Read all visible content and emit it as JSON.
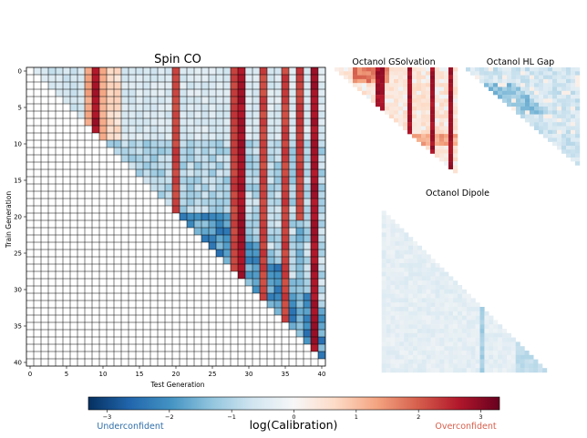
{
  "chart_data": [
    {
      "type": "heatmap",
      "title": "Spin CO",
      "xlabel": "Test Generation",
      "ylabel": "Train Generation",
      "x_ticks": [
        0,
        5,
        10,
        15,
        20,
        25,
        30,
        35,
        40
      ],
      "y_ticks": [
        0,
        5,
        10,
        15,
        20,
        25,
        30,
        35,
        40
      ],
      "n": 41,
      "grid": true,
      "shape": "upper-triangle",
      "strong_positive_test_generations": [
        8,
        9,
        10,
        20,
        28,
        29,
        32,
        35,
        37,
        39
      ],
      "value_range": [
        -3.2,
        3.2
      ]
    },
    {
      "type": "heatmap",
      "title": "Octanol GSolvation",
      "grid": false,
      "shape": "upper-triangle",
      "strong_positive_columns": [
        10,
        11,
        17,
        22,
        26
      ]
    },
    {
      "type": "heatmap",
      "title": "Octanol HL Gap",
      "grid": false,
      "shape": "upper-triangle",
      "sign": "mostly negative"
    },
    {
      "type": "heatmap",
      "title": "Octanol Dipole",
      "grid": false,
      "shape": "lower-triangle",
      "sign": "mostly weakly negative"
    }
  ],
  "colorbar": {
    "label": "log(Calibration)",
    "ticks": [
      "−3",
      "−2",
      "−1",
      "0",
      "1",
      "2",
      "3"
    ],
    "tick_values": [
      -3,
      -2,
      -1,
      0,
      1,
      2,
      3
    ],
    "range": [
      -3.3,
      3.3
    ],
    "left_caption": "Underconfident",
    "right_caption": "Overconfident",
    "left_caption_color": "#2f6ea8",
    "right_caption_color": "#d6604d",
    "colormap": "RdBu_r"
  }
}
